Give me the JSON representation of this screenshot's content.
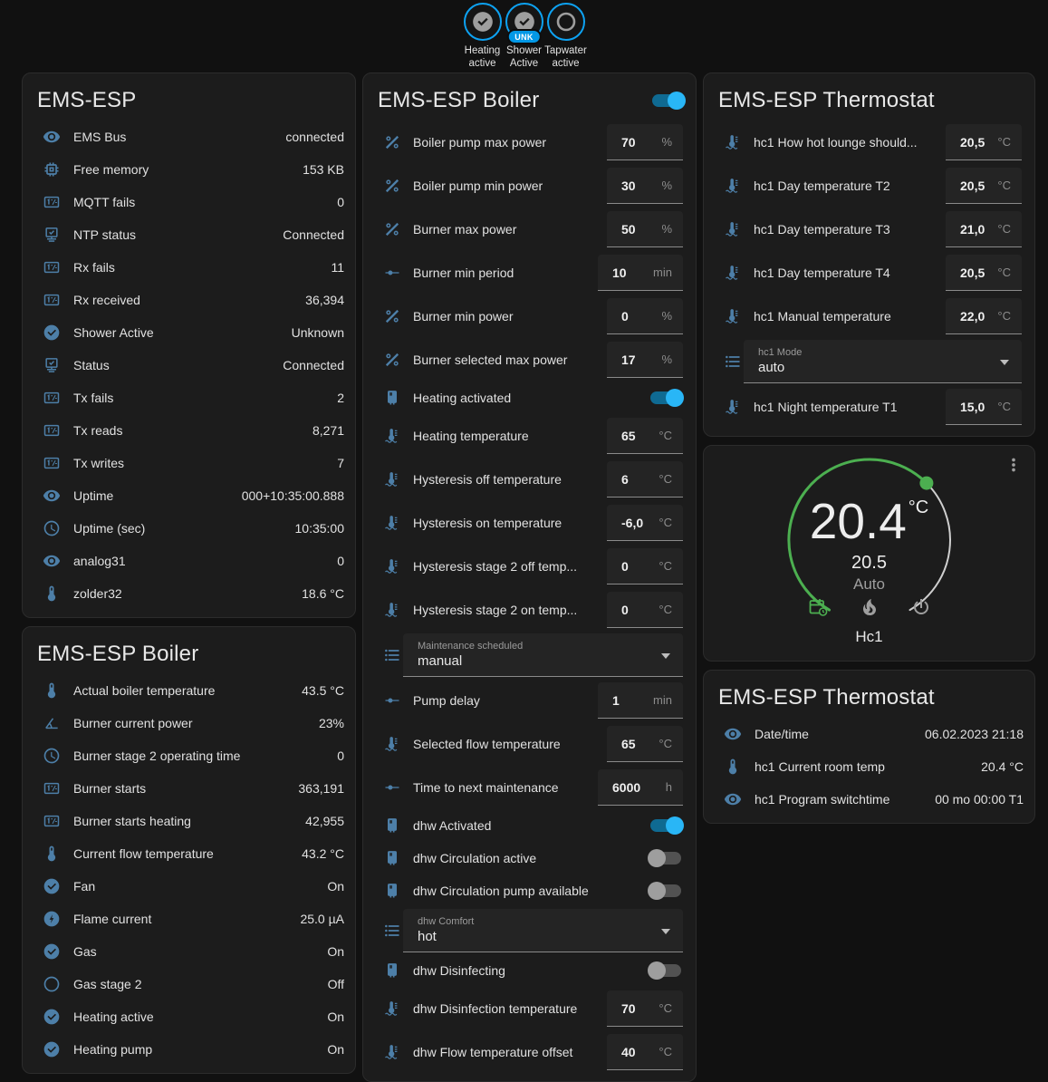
{
  "colors": {
    "accent": "#29b6f6",
    "icon_blue": "#4d7fa8",
    "green": "#4caf50",
    "card_bg": "#1c1c1c",
    "page_bg": "#111111"
  },
  "badges": [
    {
      "label": "Heating active",
      "icon": "check-circle-icon",
      "pill": ""
    },
    {
      "label": "Shower Active",
      "icon": "check-circle-icon",
      "pill": "UNK"
    },
    {
      "label": "Tapwater active",
      "icon": "circle-blank-icon",
      "pill": ""
    }
  ],
  "cards": {
    "ems_esp": {
      "title": "EMS-ESP",
      "rows": [
        {
          "icon": "eye-icon",
          "label": "EMS Bus",
          "value": "connected"
        },
        {
          "icon": "memory-icon",
          "label": "Free memory",
          "value": "153 KB"
        },
        {
          "icon": "counter-icon",
          "label": "MQTT fails",
          "value": "0"
        },
        {
          "icon": "network-check-icon",
          "label": "NTP status",
          "value": "Connected"
        },
        {
          "icon": "counter-icon",
          "label": "Rx fails",
          "value": "11"
        },
        {
          "icon": "counter-icon",
          "label": "Rx received",
          "value": "36,394"
        },
        {
          "icon": "check-circle-icon",
          "label": "Shower Active",
          "value": "Unknown"
        },
        {
          "icon": "network-check-icon",
          "label": "Status",
          "value": "Connected"
        },
        {
          "icon": "counter-icon",
          "label": "Tx fails",
          "value": "2"
        },
        {
          "icon": "counter-icon",
          "label": "Tx reads",
          "value": "8,271"
        },
        {
          "icon": "counter-icon",
          "label": "Tx writes",
          "value": "7"
        },
        {
          "icon": "eye-icon",
          "label": "Uptime",
          "value": "000+10:35:00.888"
        },
        {
          "icon": "clock-icon",
          "label": "Uptime (sec)",
          "value": "10:35:00"
        },
        {
          "icon": "eye-icon",
          "label": "analog31",
          "value": "0"
        },
        {
          "icon": "thermometer-icon",
          "label": "zolder32",
          "value": "18.6 °C"
        }
      ]
    },
    "boiler_sensors": {
      "title": "EMS-ESP Boiler",
      "rows": [
        {
          "icon": "thermometer-icon",
          "label": "Actual boiler temperature",
          "value": "43.5 °C"
        },
        {
          "icon": "angle-icon",
          "label": "Burner current power",
          "value": "23%"
        },
        {
          "icon": "clock-icon",
          "label": "Burner stage 2 operating time",
          "value": "0"
        },
        {
          "icon": "counter-icon",
          "label": "Burner starts",
          "value": "363,191"
        },
        {
          "icon": "counter-icon",
          "label": "Burner starts heating",
          "value": "42,955"
        },
        {
          "icon": "thermometer-icon",
          "label": "Current flow temperature",
          "value": "43.2 °C"
        },
        {
          "icon": "check-circle-icon",
          "label": "Fan",
          "value": "On"
        },
        {
          "icon": "flash-circle-icon",
          "label": "Flame current",
          "value": "25.0 µA"
        },
        {
          "icon": "check-circle-icon",
          "label": "Gas",
          "value": "On"
        },
        {
          "icon": "circle-blank-icon",
          "label": "Gas stage 2",
          "value": "Off"
        },
        {
          "icon": "check-circle-icon",
          "label": "Heating active",
          "value": "On"
        },
        {
          "icon": "check-circle-icon",
          "label": "Heating pump",
          "value": "On"
        }
      ]
    },
    "boiler_controls": {
      "title": "EMS-ESP Boiler",
      "power_toggle": "on",
      "rows": [
        {
          "type": "number",
          "icon": "percent-icon",
          "label": "Boiler pump max power",
          "value": "70",
          "unit": "%"
        },
        {
          "type": "number",
          "icon": "percent-icon",
          "label": "Boiler pump min power",
          "value": "30",
          "unit": "%"
        },
        {
          "type": "number",
          "icon": "percent-icon",
          "label": "Burner max power",
          "value": "50",
          "unit": "%"
        },
        {
          "type": "number",
          "icon": "slider-icon",
          "label": "Burner min period",
          "value": "10",
          "unit": "min"
        },
        {
          "type": "number",
          "icon": "percent-icon",
          "label": "Burner min power",
          "value": "0",
          "unit": "%"
        },
        {
          "type": "number",
          "icon": "percent-icon",
          "label": "Burner selected max power",
          "value": "17",
          "unit": "%"
        },
        {
          "type": "toggle",
          "icon": "water-boiler-icon",
          "label": "Heating activated",
          "state": "on"
        },
        {
          "type": "number",
          "icon": "coolant-temperature-icon",
          "label": "Heating temperature",
          "value": "65",
          "unit": "°C"
        },
        {
          "type": "number",
          "icon": "coolant-temperature-icon",
          "label": "Hysteresis off temperature",
          "value": "6",
          "unit": "°C"
        },
        {
          "type": "number",
          "icon": "coolant-temperature-icon",
          "label": "Hysteresis on temperature",
          "value": "-6,0",
          "unit": "°C"
        },
        {
          "type": "number",
          "icon": "coolant-temperature-icon",
          "label": "Hysteresis stage 2 off temp...",
          "value": "0",
          "unit": "°C"
        },
        {
          "type": "number",
          "icon": "coolant-temperature-icon",
          "label": "Hysteresis stage 2 on temp...",
          "value": "0",
          "unit": "°C"
        },
        {
          "type": "select",
          "icon": "list-icon",
          "label": "Maintenance scheduled",
          "value": "manual"
        },
        {
          "type": "number",
          "icon": "slider-icon",
          "label": "Pump delay",
          "value": "1",
          "unit": "min"
        },
        {
          "type": "number",
          "icon": "coolant-temperature-icon",
          "label": "Selected flow temperature",
          "value": "65",
          "unit": "°C"
        },
        {
          "type": "number",
          "icon": "slider-icon",
          "label": "Time to next maintenance",
          "value": "6000",
          "unit": "h"
        },
        {
          "type": "toggle",
          "icon": "water-boiler-icon",
          "label": "dhw Activated",
          "state": "on"
        },
        {
          "type": "toggle",
          "icon": "water-boiler-icon",
          "label": "dhw Circulation active",
          "state": "off"
        },
        {
          "type": "toggle",
          "icon": "water-boiler-icon",
          "label": "dhw Circulation pump available",
          "state": "off"
        },
        {
          "type": "select",
          "icon": "list-icon",
          "label": "dhw Comfort",
          "value": "hot"
        },
        {
          "type": "toggle",
          "icon": "water-boiler-icon",
          "label": "dhw Disinfecting",
          "state": "off"
        },
        {
          "type": "number",
          "icon": "coolant-temperature-icon",
          "label": "dhw Disinfection temperature",
          "value": "70",
          "unit": "°C"
        },
        {
          "type": "number",
          "icon": "coolant-temperature-icon",
          "label": "dhw Flow temperature offset",
          "value": "40",
          "unit": "°C"
        }
      ]
    },
    "thermostat_controls": {
      "title": "EMS-ESP Thermostat",
      "rows": [
        {
          "type": "number",
          "icon": "coolant-temperature-icon",
          "label": "hc1 How hot lounge should...",
          "value": "20,5",
          "unit": "°C"
        },
        {
          "type": "number",
          "icon": "coolant-temperature-icon",
          "label": "hc1 Day temperature T2",
          "value": "20,5",
          "unit": "°C"
        },
        {
          "type": "number",
          "icon": "coolant-temperature-icon",
          "label": "hc1 Day temperature T3",
          "value": "21,0",
          "unit": "°C"
        },
        {
          "type": "number",
          "icon": "coolant-temperature-icon",
          "label": "hc1 Day temperature T4",
          "value": "20,5",
          "unit": "°C"
        },
        {
          "type": "number",
          "icon": "coolant-temperature-icon",
          "label": "hc1 Manual temperature",
          "value": "22,0",
          "unit": "°C"
        },
        {
          "type": "select",
          "icon": "list-icon",
          "label": "hc1 Mode",
          "value": "auto"
        },
        {
          "type": "number",
          "icon": "coolant-temperature-icon",
          "label": "hc1 Night temperature T1",
          "value": "15,0",
          "unit": "°C"
        }
      ]
    },
    "thermostat_dial": {
      "current_temp": "20.4",
      "unit": "°C",
      "target_temp": "20.5",
      "mode": "Auto",
      "name": "Hc1"
    },
    "thermostat_info": {
      "title": "EMS-ESP Thermostat",
      "rows": [
        {
          "icon": "eye-icon",
          "label": "Date/time",
          "value": "06.02.2023 21:18"
        },
        {
          "icon": "thermometer-icon",
          "label": "hc1 Current room temp",
          "value": "20.4 °C"
        },
        {
          "icon": "eye-icon",
          "label": "hc1 Program switchtime",
          "value": "00 mo 00:00 T1"
        }
      ]
    }
  }
}
